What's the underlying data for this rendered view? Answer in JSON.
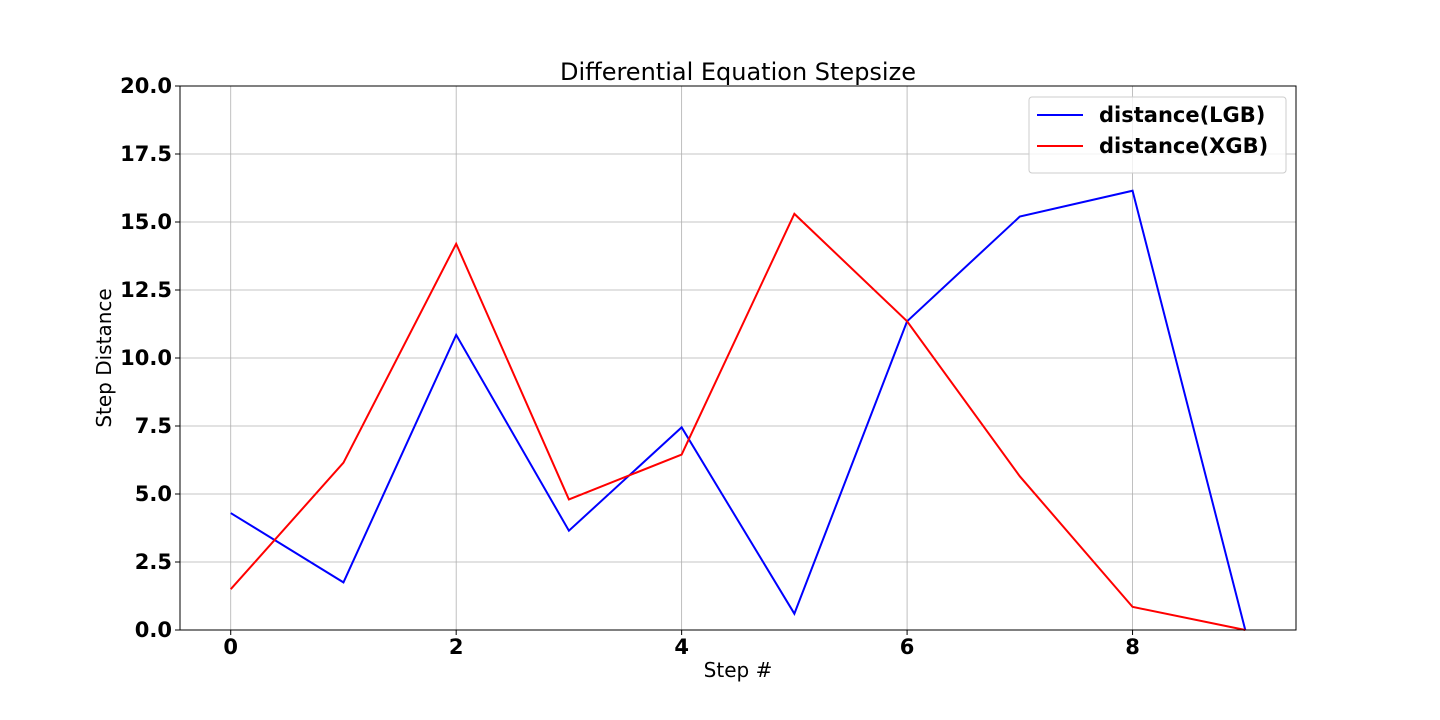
{
  "chart_data": {
    "type": "line",
    "title": "Differential Equation Stepsize",
    "xlabel": "Step #",
    "ylabel": "Step Distance",
    "x": [
      0,
      1,
      2,
      3,
      4,
      5,
      6,
      7,
      8,
      9
    ],
    "xlim": [
      -0.45,
      9.45
    ],
    "ylim": [
      0,
      20
    ],
    "xticks": [
      0,
      2,
      4,
      6,
      8
    ],
    "xtick_labels": [
      "0",
      "2",
      "4",
      "6",
      "8"
    ],
    "yticks": [
      0,
      2.5,
      5,
      7.5,
      10,
      12.5,
      15,
      17.5,
      20
    ],
    "ytick_labels": [
      "0.0",
      "2.5",
      "5.0",
      "7.5",
      "10.0",
      "12.5",
      "15.0",
      "17.5",
      "20.0"
    ],
    "grid": true,
    "legend_position": "top-right",
    "series": [
      {
        "name": "distance(LGB)",
        "color": "#0000ff",
        "values": [
          4.3,
          1.75,
          10.85,
          3.65,
          7.45,
          0.6,
          11.35,
          15.2,
          16.15,
          0.0
        ]
      },
      {
        "name": "distance(XGB)",
        "color": "#ff0000",
        "values": [
          1.5,
          6.15,
          14.2,
          4.8,
          6.45,
          15.3,
          11.35,
          5.65,
          0.85,
          0.0
        ]
      }
    ]
  }
}
